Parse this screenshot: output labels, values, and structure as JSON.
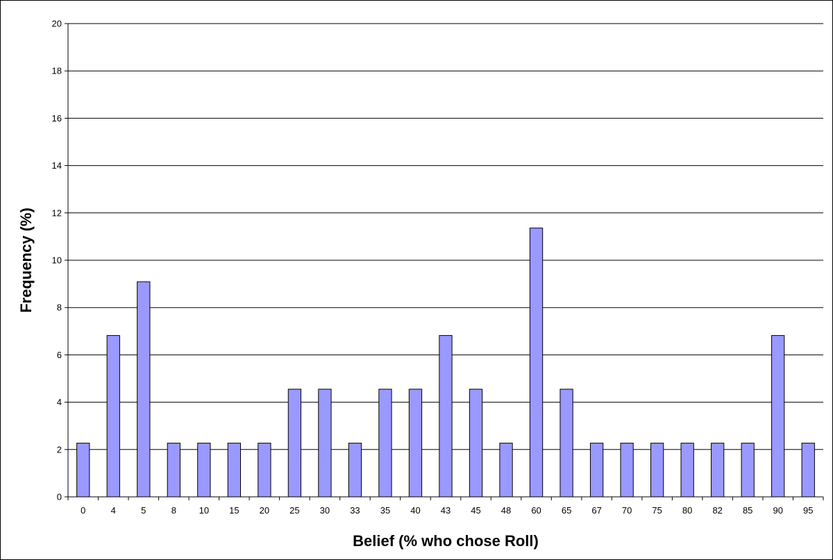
{
  "chart_data": {
    "type": "bar",
    "title": "",
    "xlabel": "Belief (% who chose Roll)",
    "ylabel": "Frequency (%)",
    "ylim": [
      0,
      20
    ],
    "yticks": [
      "0",
      "2",
      "4",
      "6",
      "8",
      "10",
      "12",
      "14",
      "16",
      "18",
      "20"
    ],
    "grid": true,
    "legend": "none",
    "categories": [
      "0",
      "4",
      "5",
      "8",
      "10",
      "15",
      "20",
      "25",
      "30",
      "33",
      "35",
      "40",
      "43",
      "45",
      "48",
      "60",
      "65",
      "67",
      "70",
      "75",
      "80",
      "82",
      "85",
      "90",
      "95"
    ],
    "values": [
      2.27,
      6.82,
      9.09,
      2.27,
      2.27,
      2.27,
      2.27,
      4.55,
      4.55,
      2.27,
      4.55,
      4.55,
      6.82,
      4.55,
      2.27,
      11.36,
      4.55,
      2.27,
      2.27,
      2.27,
      2.27,
      2.27,
      2.27,
      6.82,
      2.27
    ],
    "colors": {
      "bar_fill": "#9999ff",
      "bar_stroke": "#000000",
      "grid": "#000000",
      "background": "#ffffff"
    }
  }
}
